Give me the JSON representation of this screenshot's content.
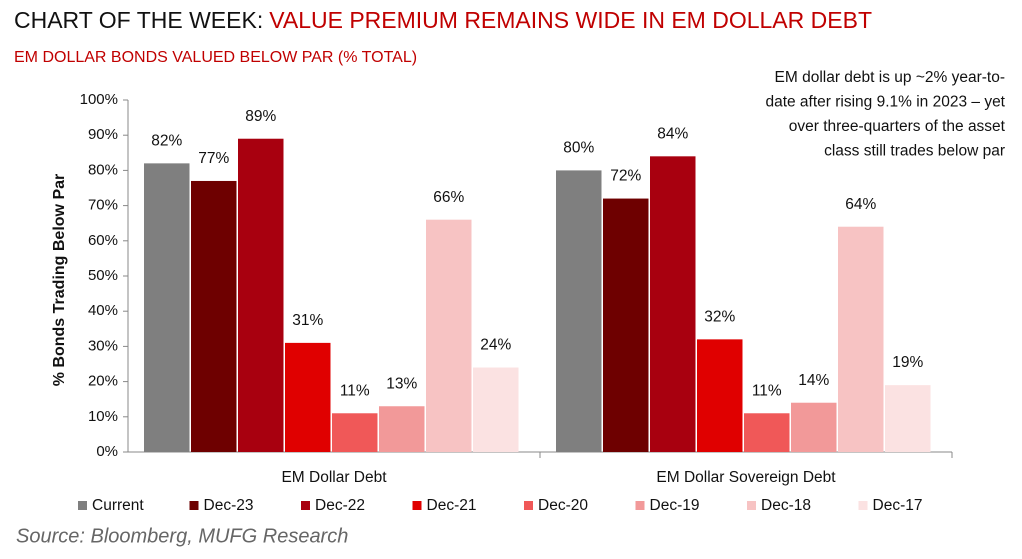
{
  "chart_data": {
    "type": "bar",
    "title": "CHART OF THE WEEK:",
    "title_highlight": "VALUE PREMIUM REMAINS WIDE IN EM DOLLAR DEBT",
    "subtitle": "EM DOLLAR BONDS VALUED BELOW PAR (% TOTAL)",
    "annotation": [
      "EM dollar debt is up ~2%  year-to-",
      "date after rising 9.1% in 2023 – yet",
      "over three-quarters of the asset",
      "class still trades below par"
    ],
    "y_label": "% Bonds Trading Below Par",
    "source": "Source: Bloomberg, MUFG Research",
    "categories": [
      "EM Dollar Debt",
      "EM Dollar Sovereign Debt"
    ],
    "series": [
      {
        "name": "Current",
        "color": "#7f7f7f",
        "values": [
          82,
          80
        ],
        "value_labels": [
          "82%",
          "80%"
        ]
      },
      {
        "name": "Dec-23",
        "color": "#6e0000",
        "values": [
          77,
          72
        ],
        "value_labels": [
          "77%",
          "72%"
        ]
      },
      {
        "name": "Dec-22",
        "color": "#a8000f",
        "values": [
          89,
          84
        ],
        "value_labels": [
          "89%",
          "84%"
        ]
      },
      {
        "name": "Dec-21",
        "color": "#e00000",
        "values": [
          31,
          32
        ],
        "value_labels": [
          "31%",
          "32%"
        ]
      },
      {
        "name": "Dec-20",
        "color": "#f05858",
        "values": [
          11,
          11
        ],
        "value_labels": [
          "11%",
          "11%"
        ]
      },
      {
        "name": "Dec-19",
        "color": "#f29999",
        "values": [
          13,
          14
        ],
        "value_labels": [
          "13%",
          "14%"
        ]
      },
      {
        "name": "Dec-18",
        "color": "#f7c3c3",
        "values": [
          66,
          64
        ],
        "value_labels": [
          "66%",
          "64%"
        ]
      },
      {
        "name": "Dec-17",
        "color": "#fbe2e2",
        "values": [
          24,
          19
        ],
        "value_labels": [
          "24%",
          "19%"
        ]
      }
    ],
    "ylim": [
      0,
      100
    ],
    "yticks": [
      {
        "value": 0,
        "label": "0%"
      },
      {
        "value": 10,
        "label": "10%"
      },
      {
        "value": 20,
        "label": "20%"
      },
      {
        "value": 30,
        "label": "30%"
      },
      {
        "value": 40,
        "label": "40%"
      },
      {
        "value": 50,
        "label": "50%"
      },
      {
        "value": 60,
        "label": "60%"
      },
      {
        "value": 70,
        "label": "70%"
      },
      {
        "value": 80,
        "label": "80%"
      },
      {
        "value": 90,
        "label": "90%"
      },
      {
        "value": 100,
        "label": "100%"
      }
    ],
    "grid": false
  }
}
